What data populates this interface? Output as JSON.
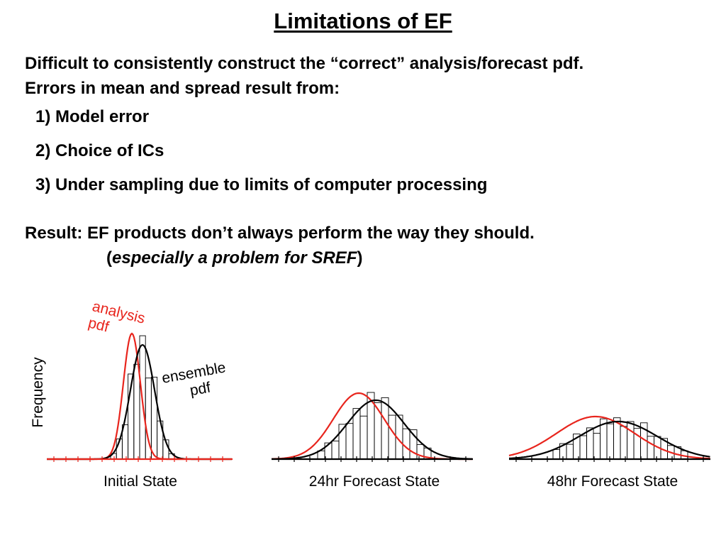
{
  "slide": {
    "title": "Limitations of EF",
    "intro_line1": "Difficult to consistently construct the “correct” analysis/forecast pdf.",
    "intro_line2": "Errors in mean and spread result from:",
    "items": [
      "1) Model error",
      "2) Choice of ICs",
      "3) Under sampling due to limits of computer processing"
    ],
    "result_text": "Result:  EF products don’t always perform the way they should.",
    "result_paren_open": "(",
    "result_note": "especially a problem for SREF",
    "result_paren_close": ")"
  },
  "figure": {
    "y_label": "Frequency",
    "analysis_label_line1": "analysis",
    "analysis_label_line2": "pdf",
    "ensemble_label_line1": "ensemble",
    "ensemble_label_line2": "pdf",
    "panels": [
      {
        "caption": "Initial State"
      },
      {
        "caption": "24hr Forecast State"
      },
      {
        "caption": "48hr Forecast State"
      }
    ],
    "colors": {
      "analysis": "#e8251d",
      "ensemble": "#000000",
      "histogram": "#000000"
    }
  }
}
